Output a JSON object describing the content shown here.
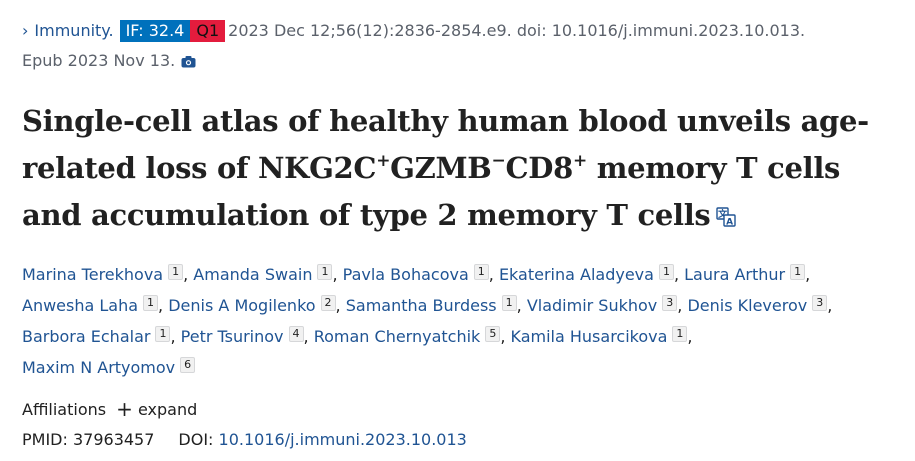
{
  "citation": {
    "journal": "Immunity.",
    "if_badge": "IF: 32.4",
    "quartile": "Q1",
    "details": "2023 Dec 12;56(12):2836-2854.e9. doi: 10.1016/j.immuni.2023.10.013.",
    "epub": "Epub 2023 Nov 13."
  },
  "title": {
    "part1": "Single-cell atlas of healthy human blood unveils age-related loss of NKG2C",
    "sup1": "+",
    "part2": "GZMB",
    "sup2": "−",
    "part3": "CD8",
    "sup3": "+",
    "part4": " memory T cells and accumulation of type 2 memory T cells"
  },
  "authors": [
    {
      "name": "Marina Terekhova",
      "aff": "1"
    },
    {
      "name": "Amanda Swain",
      "aff": "1"
    },
    {
      "name": "Pavla Bohacova",
      "aff": "1"
    },
    {
      "name": "Ekaterina Aladyeva",
      "aff": "1"
    },
    {
      "name": "Laura Arthur",
      "aff": "1"
    },
    {
      "name": "Anwesha Laha",
      "aff": "1"
    },
    {
      "name": "Denis A Mogilenko",
      "aff": "2"
    },
    {
      "name": "Samantha Burdess",
      "aff": "1"
    },
    {
      "name": "Vladimir Sukhov",
      "aff": "3"
    },
    {
      "name": "Denis Kleverov",
      "aff": "3"
    },
    {
      "name": "Barbora Echalar",
      "aff": "1"
    },
    {
      "name": "Petr Tsurinov",
      "aff": "4"
    },
    {
      "name": "Roman Chernyatchik",
      "aff": "5"
    },
    {
      "name": "Kamila Husarcikova",
      "aff": "1"
    },
    {
      "name": "Maxim N Artyomov",
      "aff": "6"
    }
  ],
  "affiliations": {
    "label": "Affiliations",
    "expand_icon": "+",
    "expand_label": "expand"
  },
  "ids": {
    "pmid": "PMID: 37963457",
    "doi_label": "DOI:",
    "doi_value": "10.1016/j.immuni.2023.10.013"
  },
  "colors": {
    "link": "#205493",
    "if_badge": "#0071bc",
    "q1_badge": "#e31c3d"
  },
  "icons": {
    "chevron": "chevron-right-icon",
    "camera": "camera-icon",
    "translate": "translate-icon"
  }
}
